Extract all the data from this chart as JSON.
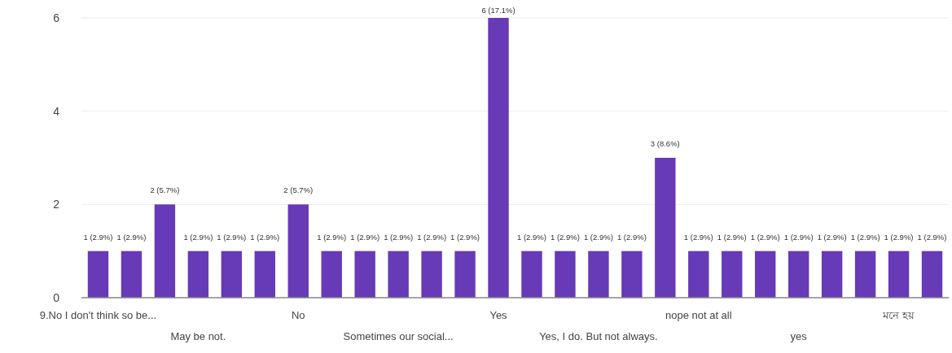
{
  "chart_data": {
    "type": "bar",
    "categories": [
      "9.No I don't think so be...",
      null,
      null,
      "May be not.",
      null,
      null,
      "No",
      null,
      null,
      "Sometimes our social...",
      null,
      null,
      "Yes",
      null,
      null,
      "Yes, I do. But not always.",
      null,
      null,
      "nope not at all",
      null,
      null,
      "yes",
      null,
      null,
      "মনে হয়",
      null
    ],
    "values": [
      1,
      1,
      2,
      1,
      1,
      1,
      2,
      1,
      1,
      1,
      1,
      1,
      6,
      1,
      1,
      1,
      1,
      3,
      1,
      1,
      1,
      1,
      1,
      1,
      1,
      1
    ],
    "value_labels": [
      "1 (2.9%)",
      "1 (2.9%)",
      "2 (5.7%)",
      "1 (2.9%)",
      "1 (2.9%)",
      "1 (2.9%)",
      "2 (5.7%)",
      "1 (2.9%)",
      "1 (2.9%)",
      "1 (2.9%)",
      "1 (2.9%)",
      "1 (2.9%)",
      "6 (17.1%)",
      "1 (2.9%)",
      "1 (2.9%)",
      "1 (2.9%)",
      "1 (2.9%)",
      "3 (8.6%)",
      "1 (2.9%)",
      "1 (2.9%)",
      "1 (2.9%)",
      "1 (2.9%)",
      "1 (2.9%)",
      "1 (2.9%)",
      "1 (2.9%)",
      "1 (2.9%)"
    ],
    "color": "#673ab7",
    "ylim": [
      0,
      6
    ],
    "yticks": [
      0,
      2,
      4,
      6
    ],
    "grid": "y"
  }
}
